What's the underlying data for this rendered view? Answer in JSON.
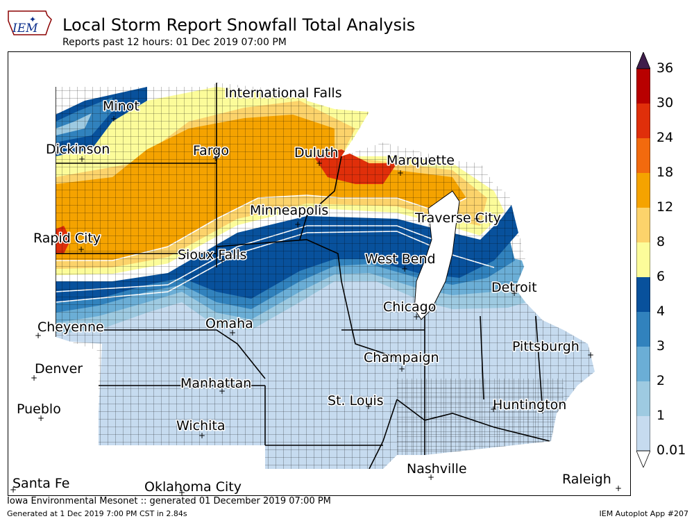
{
  "header": {
    "title": "Local Storm Report Snowfall Total Analysis",
    "subtitle": "Reports past 12 hours: 01 Dec 2019 07:00 PM",
    "logo_text": "IEM"
  },
  "footer": {
    "left_line1": "Iowa Environmental Mesonet :: generated 01 December 2019 07:00 PM",
    "left_line2": "Generated at 1 Dec 2019 7:00 PM CST in 2.84s",
    "right": "IEM Autoplot App #207"
  },
  "cities": [
    {
      "name": "Minot"
    },
    {
      "name": "International Falls"
    },
    {
      "name": "Dickinson"
    },
    {
      "name": "Fargo"
    },
    {
      "name": "Duluth"
    },
    {
      "name": "Marquette"
    },
    {
      "name": "Minneapolis"
    },
    {
      "name": "Traverse City"
    },
    {
      "name": "Rapid City"
    },
    {
      "name": "Sioux Falls"
    },
    {
      "name": "West Bend"
    },
    {
      "name": "Detroit"
    },
    {
      "name": "Chicago"
    },
    {
      "name": "Cheyenne"
    },
    {
      "name": "Omaha"
    },
    {
      "name": "Pittsburgh"
    },
    {
      "name": "Denver"
    },
    {
      "name": "Champaign"
    },
    {
      "name": "Manhattan"
    },
    {
      "name": "St. Louis"
    },
    {
      "name": "Huntington"
    },
    {
      "name": "Pueblo"
    },
    {
      "name": "Wichita"
    },
    {
      "name": "Nashville"
    },
    {
      "name": "Santa Fe"
    },
    {
      "name": "Oklahoma City"
    },
    {
      "name": "Raleigh"
    }
  ],
  "colorbar": {
    "levels": [
      "0.01",
      "1",
      "2",
      "3",
      "4",
      "6",
      "8",
      "12",
      "18",
      "24",
      "30",
      "36"
    ],
    "colors": [
      "#c6dbef",
      "#9ecae1",
      "#6baed6",
      "#3182bd",
      "#08519c",
      "#fcfc9a",
      "#fcd36b",
      "#f5a300",
      "#f26a0e",
      "#e02f0a",
      "#b80000",
      "#7a0000"
    ],
    "under_color": "#ffffff",
    "over_color": "#3f1d4b"
  }
}
